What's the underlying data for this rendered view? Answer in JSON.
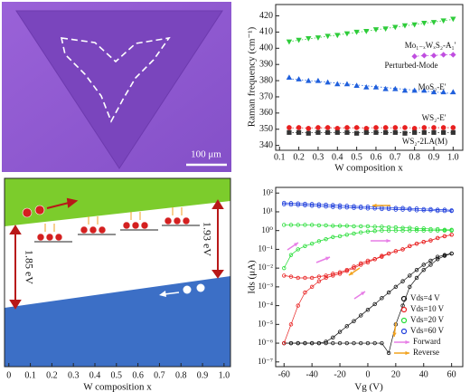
{
  "image_panel": {
    "scale_bar": "100 μm"
  },
  "chart_data": [
    {
      "type": "band",
      "xlabel": "W composition x",
      "xlim": [
        -0.02,
        1.03
      ],
      "xticks": [
        0,
        0.1,
        0.2,
        0.3,
        0.4,
        0.5,
        0.6,
        0.7,
        0.8,
        0.9,
        {
          "value": 1,
          "label": "1.0"
        }
      ],
      "annotations": [
        "1.85 eV",
        "1.93 eV"
      ]
    },
    {
      "type": "scatter",
      "ylabel": "Raman frequency (cm⁻¹)",
      "xlabel": "W composition x",
      "xlim": [
        0.08,
        1.05
      ],
      "ylim": [
        337,
        427
      ],
      "xticks": [
        0.1,
        0.2,
        0.3,
        0.4,
        0.5,
        0.6,
        0.7,
        0.8,
        0.9,
        {
          "value": 1,
          "label": "1.0"
        }
      ],
      "yticks": [
        340,
        350,
        360,
        370,
        380,
        390,
        400,
        410,
        420
      ],
      "series": [
        {
          "name": "Mo₁₋ₓWₓS₂-A₁'",
          "color": "#2ecc3a",
          "marker": "triangle-down",
          "x": [
            0.15,
            0.2,
            0.25,
            0.3,
            0.35,
            0.4,
            0.45,
            0.5,
            0.55,
            0.6,
            0.65,
            0.7,
            0.75,
            0.8,
            0.85,
            0.9,
            0.95,
            1.0
          ],
          "values": [
            404,
            405,
            406,
            406.5,
            407.5,
            408,
            409,
            410,
            410.5,
            411.5,
            412,
            413,
            414,
            414.5,
            415.5,
            416,
            417,
            418
          ]
        },
        {
          "name": "Perturbed-Mode",
          "color": "#c04ee0",
          "marker": "diamond",
          "x": [
            0.8,
            0.85,
            0.9,
            0.95,
            1.0
          ],
          "values": [
            395,
            395.5,
            395.5,
            396,
            396
          ]
        },
        {
          "name": "MoS₂-E'",
          "color": "#1f5fdc",
          "marker": "triangle-up",
          "x": [
            0.15,
            0.2,
            0.25,
            0.3,
            0.35,
            0.4,
            0.45,
            0.5,
            0.55,
            0.6,
            0.65,
            0.7,
            0.75,
            0.8,
            0.85,
            0.9,
            0.95,
            1.0
          ],
          "values": [
            382,
            381,
            380,
            380,
            379,
            378,
            378,
            377,
            376,
            376,
            375,
            375,
            374,
            374,
            374,
            373,
            373,
            373
          ]
        },
        {
          "name": "WS₂-E'",
          "color": "#e82020",
          "marker": "circle",
          "x": [
            0.15,
            0.2,
            0.25,
            0.3,
            0.35,
            0.4,
            0.45,
            0.5,
            0.55,
            0.6,
            0.65,
            0.7,
            0.75,
            0.8,
            0.85,
            0.9,
            0.95,
            1.0
          ],
          "values": [
            351,
            351,
            350.5,
            351,
            351,
            350.5,
            351,
            351,
            350.5,
            351,
            351,
            351,
            351,
            350.5,
            351,
            351,
            351,
            351
          ]
        },
        {
          "name": "WS₂-2LA(M)",
          "color": "#333333",
          "marker": "square",
          "x": [
            0.15,
            0.2,
            0.25,
            0.3,
            0.35,
            0.4,
            0.45,
            0.5,
            0.55,
            0.6,
            0.65,
            0.7,
            0.75,
            0.8,
            0.85,
            0.9,
            0.95,
            1.0
          ],
          "values": [
            348,
            348,
            347.5,
            348,
            348,
            348,
            348,
            347.5,
            348,
            348,
            348,
            348,
            347.5,
            348,
            348,
            348,
            348,
            348
          ]
        }
      ]
    },
    {
      "type": "line",
      "log_y": true,
      "ylabel": "Ids (μA)",
      "xlabel": "Vg (V)",
      "xlim": [
        -66,
        68
      ],
      "ylim": [
        5.6e-08,
        200
      ],
      "xticks": [
        -60,
        -40,
        -20,
        0,
        20,
        40,
        60
      ],
      "yticks": [
        {
          "value": 1e-07,
          "label": "10⁻⁷"
        },
        {
          "value": 1e-06,
          "label": "10⁻⁶"
        },
        {
          "value": 1e-05,
          "label": "10⁻⁵"
        },
        {
          "value": 0.0001,
          "label": "10⁻⁴"
        },
        {
          "value": 0.001,
          "label": "10⁻³"
        },
        {
          "value": 0.01,
          "label": "10⁻²"
        },
        {
          "value": 0.1,
          "label": "10⁻¹"
        },
        {
          "value": 1,
          "label": "10⁰"
        },
        {
          "value": 10,
          "label": "10¹"
        },
        {
          "value": 100,
          "label": "10²"
        }
      ],
      "x": [
        -60,
        -55,
        -50,
        -45,
        -40,
        -35,
        -30,
        -25,
        -20,
        -15,
        -10,
        -5,
        0,
        5,
        10,
        15,
        20,
        25,
        30,
        35,
        40,
        45,
        50,
        55,
        60
      ],
      "legend": "lower right",
      "series": [
        {
          "name": "Vds=4 V",
          "color": "#111111",
          "forward": [
            1e-06,
            1e-06,
            1e-06,
            1e-06,
            1e-06,
            1e-06,
            1e-06,
            1e-06,
            1e-06,
            1e-06,
            1e-06,
            1e-06,
            1e-06,
            1e-06,
            1e-06,
            3e-07,
            1e-05,
            0.0001,
            0.001,
            0.003,
            0.008,
            0.015,
            0.03,
            0.045,
            0.06
          ],
          "reverse": [
            1e-06,
            1e-06,
            1e-06,
            1e-06,
            1e-06,
            1e-06,
            1.2e-06,
            2e-06,
            4e-06,
            8e-06,
            1.5e-05,
            3e-05,
            6e-05,
            0.00012,
            0.00025,
            0.0005,
            0.001,
            0.002,
            0.004,
            0.008,
            0.015,
            0.025,
            0.04,
            0.05,
            0.06
          ]
        },
        {
          "name": "Vds=10 V",
          "color": "#e82020",
          "forward": [
            0.004,
            0.0035,
            0.003,
            0.003,
            0.003,
            0.0035,
            0.004,
            0.005,
            0.006,
            0.008,
            0.012,
            0.018,
            0.025,
            0.03,
            0.04,
            0.06,
            0.08,
            0.1,
            0.15,
            0.2,
            0.25,
            0.3,
            0.4,
            0.5,
            0.6
          ],
          "reverse": [
            1e-06,
            1e-05,
            0.0001,
            0.0005,
            0.001,
            0.002,
            0.003,
            0.004,
            0.005,
            0.007,
            0.01,
            0.015,
            0.02,
            0.03,
            0.045,
            0.06,
            0.08,
            0.1,
            0.15,
            0.2,
            0.25,
            0.3,
            0.4,
            0.5,
            0.6
          ]
        },
        {
          "name": "Vds=20 V",
          "color": "#22dd33",
          "forward": [
            0.01,
            0.05,
            0.1,
            0.15,
            0.2,
            0.27,
            0.35,
            0.45,
            0.5,
            0.6,
            0.7,
            0.8,
            0.9,
            0.95,
            1,
            1,
            1,
            1,
            1,
            1,
            1,
            1,
            1,
            1,
            1
          ],
          "reverse": [
            2,
            2,
            2,
            2,
            2,
            1.9,
            1.9,
            1.8,
            1.8,
            1.8,
            1.7,
            1.7,
            1.7,
            1.6,
            1.6,
            1.5,
            1.5,
            1.4,
            1.4,
            1.3,
            1.3,
            1.2,
            1.2,
            1.1,
            1.1
          ]
        },
        {
          "name": "Vds=60 V",
          "color": "#1f3fdc",
          "forward": [
            25,
            24,
            23,
            22,
            21,
            20,
            19,
            18,
            17,
            17,
            16,
            16,
            15,
            15,
            14,
            14,
            13,
            13,
            13,
            12,
            12,
            12,
            11,
            11,
            11
          ],
          "reverse": [
            30,
            29,
            28,
            27,
            26,
            25,
            24,
            23,
            22,
            21,
            20,
            19,
            19,
            18,
            17,
            17,
            16,
            16,
            15,
            15,
            14,
            14,
            13,
            13,
            12
          ]
        }
      ],
      "sweeps": [
        {
          "name": "Forward",
          "color": "#e77de6"
        },
        {
          "name": "Reverse",
          "color": "#f2a31f"
        }
      ]
    }
  ]
}
